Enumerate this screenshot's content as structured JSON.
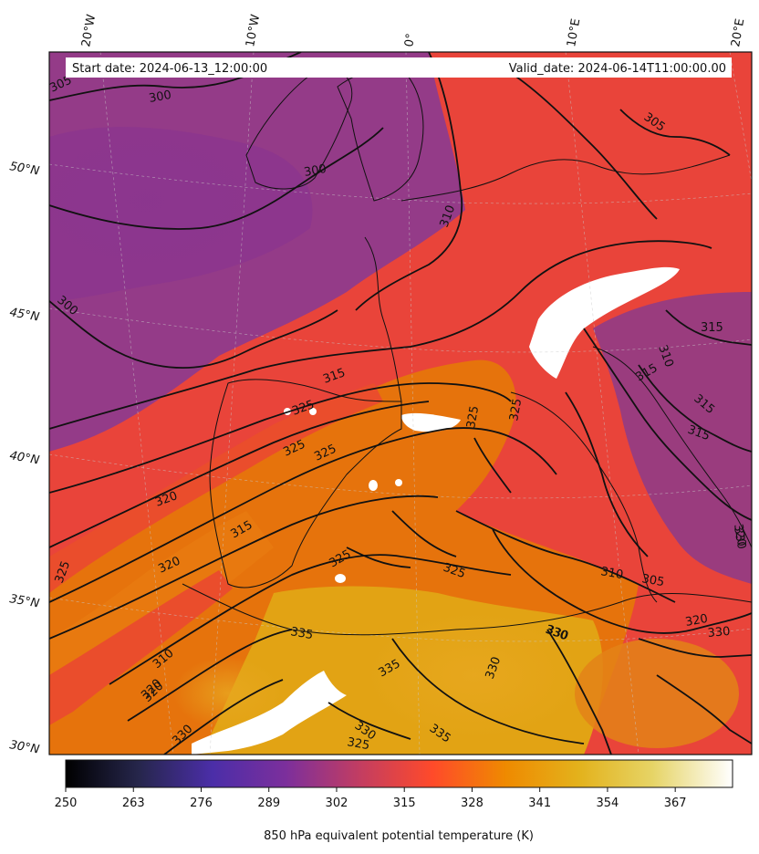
{
  "header": {
    "start_date": "Start date: 2024-06-13_12:00:00",
    "valid_date": "Valid_date: 2024-06-14T11:00:00.00"
  },
  "graticule": {
    "longitudes": [
      "20°W",
      "10°W",
      "0°",
      "10°E",
      "20°E"
    ],
    "latitudes": [
      "50°N",
      "45°N",
      "40°N",
      "35°N",
      "30°N"
    ]
  },
  "contour_labels": [
    "305",
    "300",
    "300",
    "300",
    "310",
    "305",
    "315",
    "325",
    "325",
    "325",
    "320",
    "315",
    "320",
    "325",
    "325",
    "325",
    "310",
    "315",
    "315",
    "315",
    "315",
    "320",
    "325",
    "330",
    "335",
    "335",
    "320",
    "330",
    "330",
    "330",
    "310",
    "305",
    "320",
    "330",
    "310",
    "320",
    "325",
    "330",
    "335",
    "330",
    "325"
  ],
  "colorbar": {
    "label": "850 hPa equivalent potential temperature (K)",
    "ticks": [
      "250",
      "263",
      "276",
      "289",
      "302",
      "315",
      "328",
      "341",
      "354",
      "367"
    ],
    "colormap": "CMRmap",
    "colors": [
      "#000000",
      "#26264c",
      "#4c26a6",
      "#7f2fa3",
      "#c13e64",
      "#ff4a2a",
      "#ef8a00",
      "#e5b120",
      "#e6d266",
      "#ffffff"
    ]
  }
}
